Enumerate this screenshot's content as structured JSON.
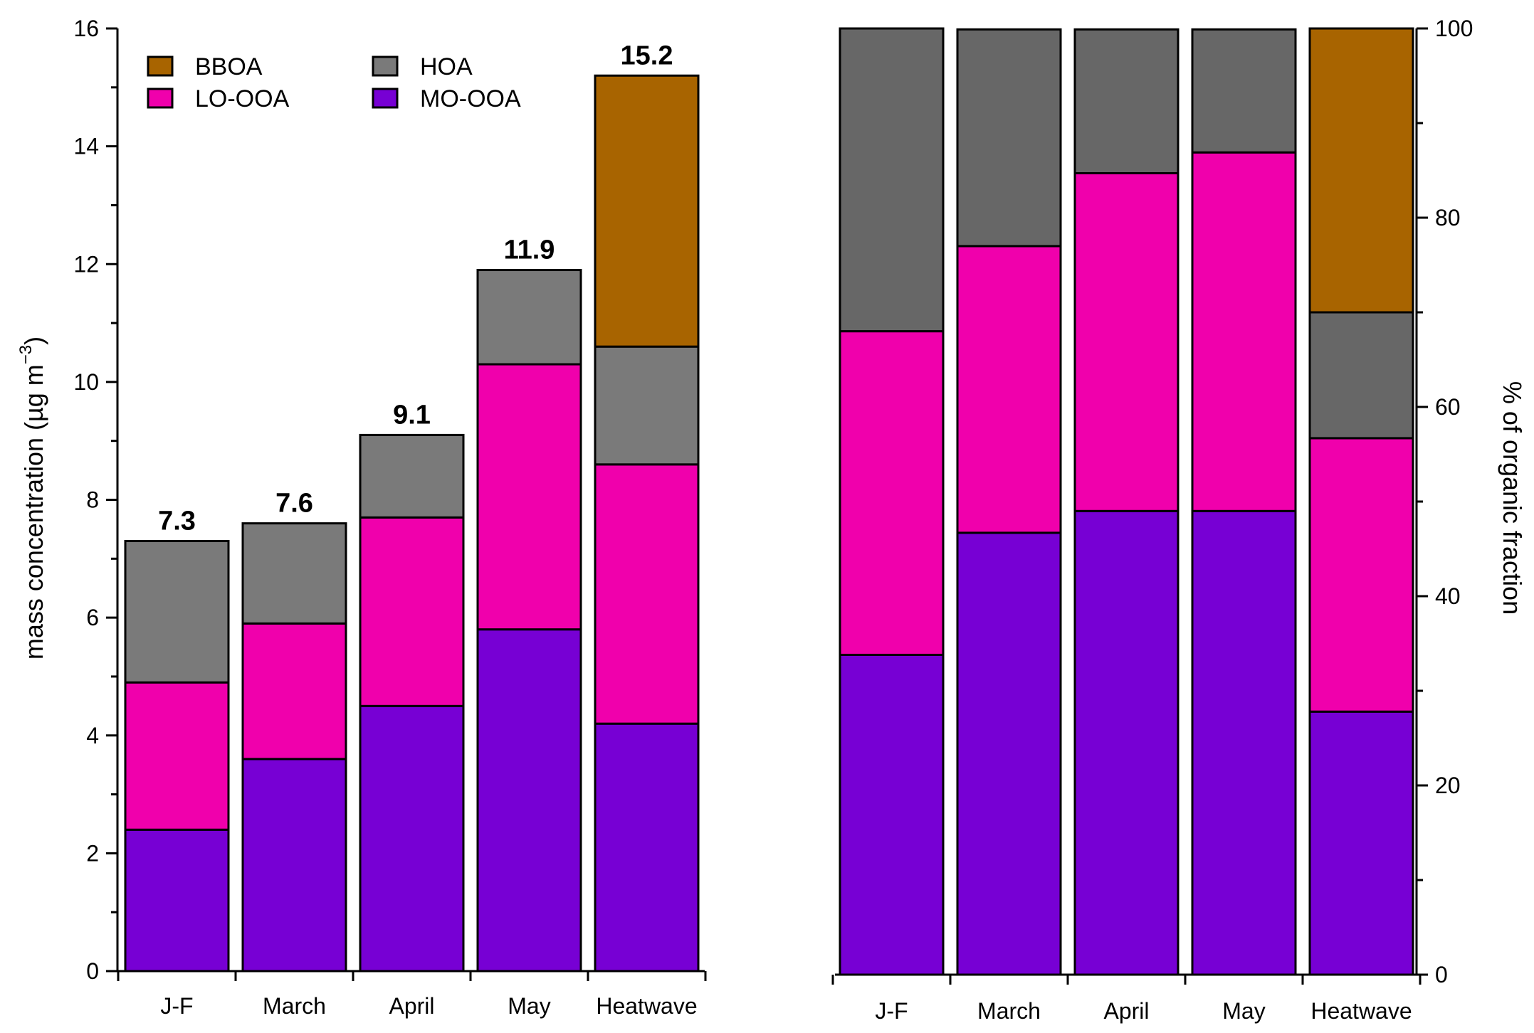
{
  "chart_data": [
    {
      "type": "bar",
      "stacked": true,
      "categories": [
        "J-F",
        "March",
        "April",
        "May",
        "Heatwave"
      ],
      "ylabel": "mass concentration (µg m",
      "ylabel_superscript": "−3",
      "ylabel_close": ")",
      "ylim": [
        0,
        16
      ],
      "yticks": [
        0,
        2,
        4,
        6,
        8,
        10,
        12,
        14,
        16
      ],
      "axis_side": "left",
      "series": [
        {
          "name": "MO-OOA",
          "color": "#7700d4",
          "values": [
            2.4,
            3.6,
            4.5,
            5.8,
            4.2
          ]
        },
        {
          "name": "LO-OOA",
          "color": "#f000ac",
          "values": [
            2.5,
            2.3,
            3.2,
            4.5,
            4.4
          ]
        },
        {
          "name": "HOA",
          "color": "#7a7a7a",
          "values": [
            2.4,
            1.7,
            1.4,
            1.6,
            2.0
          ]
        },
        {
          "name": "BBOA",
          "color": "#a86400",
          "values": [
            0,
            0,
            0,
            0,
            4.6
          ]
        }
      ],
      "totals": [
        "7.3",
        "7.6",
        "9.1",
        "11.9",
        "15.2"
      ],
      "legend": [
        "BBOA",
        "HOA",
        "LO-OOA",
        "MO-OOA"
      ],
      "legend_position": "top-left"
    },
    {
      "type": "bar",
      "stacked": true,
      "categories": [
        "J-F",
        "March",
        "April",
        "May",
        "Heatwave"
      ],
      "ylabel": "% of organic fraction",
      "ylim": [
        0,
        100
      ],
      "yticks": [
        0,
        20,
        40,
        60,
        80,
        100
      ],
      "axis_side": "right",
      "series": [
        {
          "name": "MO-OOA",
          "color": "#7700d4",
          "values": [
            33.8,
            46.7,
            49.0,
            49.0,
            27.8
          ]
        },
        {
          "name": "LO-OOA",
          "color": "#f000ac",
          "values": [
            34.2,
            30.3,
            35.7,
            37.9,
            28.9
          ]
        },
        {
          "name": "HOA",
          "color": "#676767",
          "values": [
            32.0,
            22.9,
            15.2,
            13.0,
            13.3
          ]
        },
        {
          "name": "BBOA",
          "color": "#a86400",
          "values": [
            0,
            0,
            0,
            0,
            30.0
          ]
        }
      ]
    }
  ]
}
